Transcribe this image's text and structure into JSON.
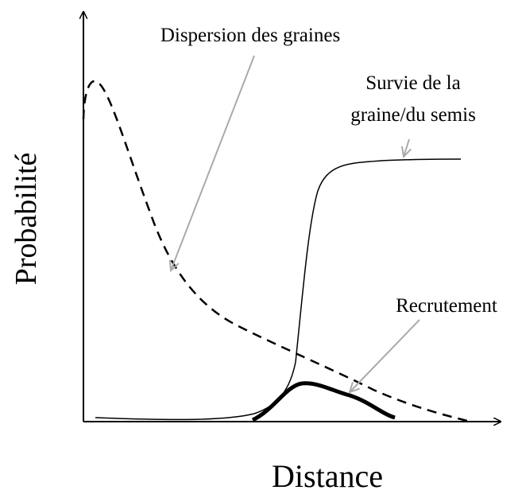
{
  "axes": {
    "y_label": "Probabilité",
    "x_label": "Distance"
  },
  "curves": [
    {
      "label": "Dispersion des graines"
    },
    {
      "label_lines": [
        "Survie de la",
        "graine/du semis"
      ]
    },
    {
      "label": "Recrutement"
    }
  ]
}
